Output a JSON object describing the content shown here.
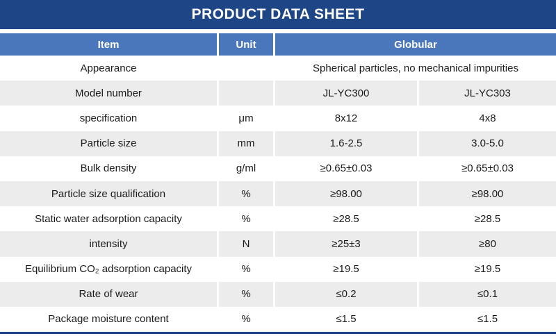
{
  "title": "PRODUCT DATA SHEET",
  "colors": {
    "title_bar": "#1e4687",
    "header_row": "#4a76bc",
    "zebra_stripe": "#ececec",
    "header_text": "#ffffff",
    "body_text": "#1b1b1b"
  },
  "table": {
    "headers": [
      "Item",
      "Unit",
      "Globular"
    ],
    "rows": [
      {
        "item": "Appearance",
        "unit": "",
        "values": [
          "Spherical particles, no mechanical impurities"
        ]
      },
      {
        "item": "Model number",
        "unit": "",
        "values": [
          "JL-YC300",
          "JL-YC303"
        ]
      },
      {
        "item": "specification",
        "unit": "μm",
        "values": [
          "8x12",
          "4x8"
        ]
      },
      {
        "item": "Particle size",
        "unit": "mm",
        "values": [
          "1.6-2.5",
          "3.0-5.0"
        ]
      },
      {
        "item": "Bulk density",
        "unit": "g/ml",
        "values": [
          "≥0.65±0.03",
          "≥0.65±0.03"
        ]
      },
      {
        "item": "Particle size qualification",
        "unit": "%",
        "values": [
          "≥98.00",
          "≥98.00"
        ]
      },
      {
        "item": "Static water adsorption capacity",
        "unit": "%",
        "values": [
          "≥28.5",
          "≥28.5"
        ]
      },
      {
        "item": "intensity",
        "unit": "N",
        "values": [
          "≥25±3",
          "≥80"
        ]
      },
      {
        "item": "Equilibrium CO₂ adsorption capacity",
        "unit": "%",
        "values": [
          "≥19.5",
          "≥19.5"
        ]
      },
      {
        "item": "Rate of wear",
        "unit": "%",
        "values": [
          "≤0.2",
          "≤0.1"
        ]
      },
      {
        "item": "Package moisture content",
        "unit": "%",
        "values": [
          "≤1.5",
          "≤1.5"
        ]
      }
    ]
  }
}
